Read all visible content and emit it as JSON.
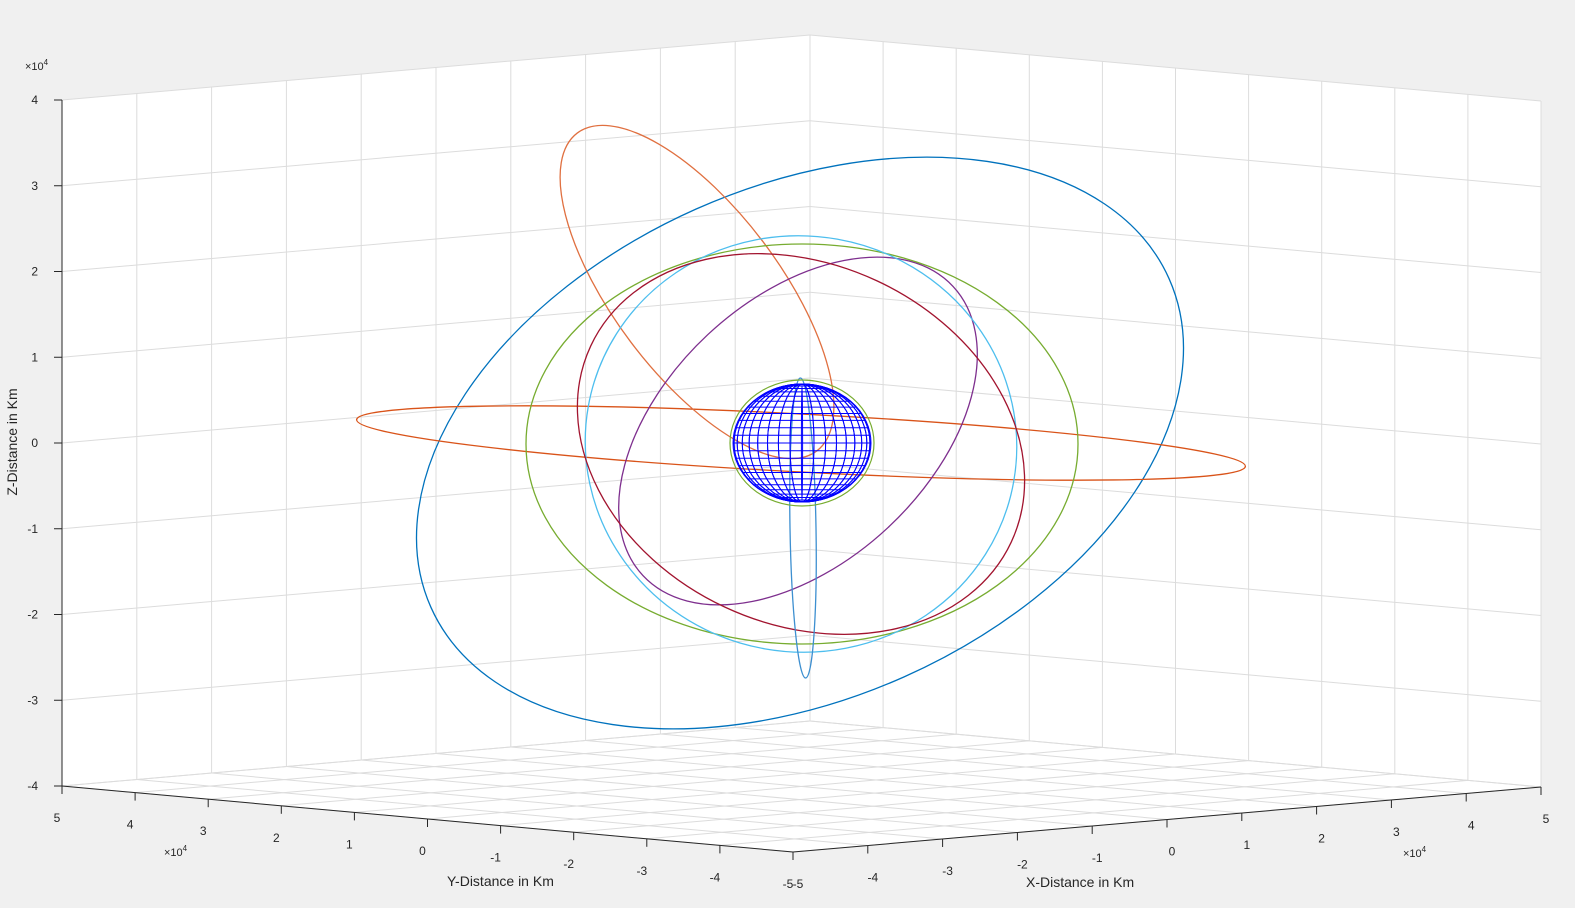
{
  "chart_data": {
    "type": "line",
    "subtype": "3d-orbit-plot",
    "title": "",
    "xlabel": "X-Distance in Km",
    "ylabel": "Y-Distance in Km",
    "zlabel": "Z-Distance in Km",
    "exponent_base": "×10",
    "exponent_power": "4",
    "xlim": [
      -5,
      5
    ],
    "ylim": [
      -5,
      5
    ],
    "zlim": [
      -4,
      4
    ],
    "x_ticks": [
      "-5",
      "-4",
      "-3",
      "-2",
      "-1",
      "0",
      "1",
      "2",
      "3",
      "4",
      "5"
    ],
    "y_ticks": [
      "-5",
      "-4",
      "-3",
      "-2",
      "-1",
      "0",
      "1",
      "2",
      "3",
      "4",
      "5"
    ],
    "z_ticks": [
      "-4",
      "-3",
      "-2",
      "-1",
      "0",
      "1",
      "2",
      "3",
      "4"
    ],
    "grid": true,
    "legend": false,
    "colors": {
      "background": "#f0f0f0",
      "pane": "#ffffff",
      "grid": "#dcdcdc",
      "axis": "#262626",
      "earth_wireframe": "#0000ff"
    },
    "central_body": "wireframe-sphere",
    "series": [
      {
        "color": "#0072bd",
        "desc": "large inclined elliptical orbit"
      },
      {
        "color": "#d95319",
        "desc": "equatorial elongated orbit"
      },
      {
        "color": "#e07040",
        "desc": "high-inclination orbit"
      },
      {
        "color": "#7e2f8e",
        "desc": "inclined orbit"
      },
      {
        "color": "#77ac30",
        "desc": "circular orbit"
      },
      {
        "color": "#4dbeee",
        "desc": "circular orbit"
      },
      {
        "color": "#a2142f",
        "desc": "inclined circular orbit"
      },
      {
        "color": "#3d8fd0",
        "desc": "polar narrow orbit"
      }
    ]
  }
}
